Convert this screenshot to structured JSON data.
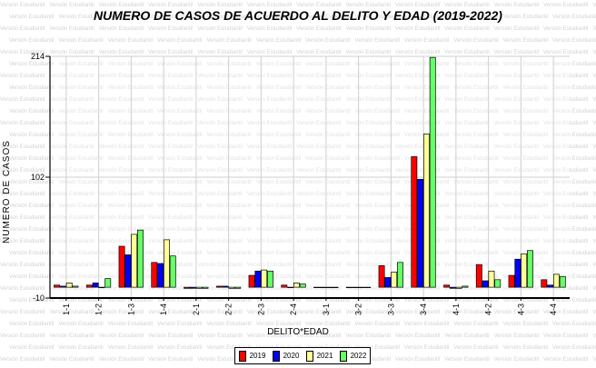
{
  "chart_data": {
    "type": "bar",
    "title": "NUMERO DE CASOS DE ACUERDO AL DELITO Y EDAD (2019-2022)",
    "xlabel": "DELITO*EDAD",
    "ylabel": "NUMERO DE CASOS",
    "ylim": [
      -10,
      214
    ],
    "yticks": [
      -10,
      102,
      214
    ],
    "categories": [
      "1-1",
      "1-2",
      "1-3",
      "1-4",
      "2-1",
      "2-2",
      "2-3",
      "2-4",
      "3-1",
      "3-2",
      "3-3",
      "3-4",
      "4-1",
      "4-2",
      "4-3",
      "4-4"
    ],
    "series": [
      {
        "name": "2019",
        "color": "#ff0000",
        "values": [
          2,
          2,
          38,
          23,
          -1,
          1,
          11,
          2,
          0,
          0,
          20,
          121,
          2,
          21,
          11,
          7
        ]
      },
      {
        "name": "2020",
        "color": "#0000ff",
        "values": [
          1,
          4,
          30,
          22,
          -1,
          1,
          15,
          0,
          0,
          0,
          9,
          100,
          -1,
          6,
          26,
          2
        ]
      },
      {
        "name": "2021",
        "color": "#ffff99",
        "values": [
          4,
          0,
          49,
          44,
          -1,
          -1,
          16,
          4,
          0,
          0,
          14,
          142,
          -1,
          15,
          31,
          12
        ]
      },
      {
        "name": "2022",
        "color": "#66ff66",
        "values": [
          1,
          8,
          53,
          29,
          -1,
          -1,
          15,
          3,
          0,
          0,
          23,
          213,
          1,
          7,
          34,
          10
        ]
      }
    ],
    "grid": true,
    "legend_position": "bottom"
  },
  "watermark_text": "Versión Estudiantil"
}
